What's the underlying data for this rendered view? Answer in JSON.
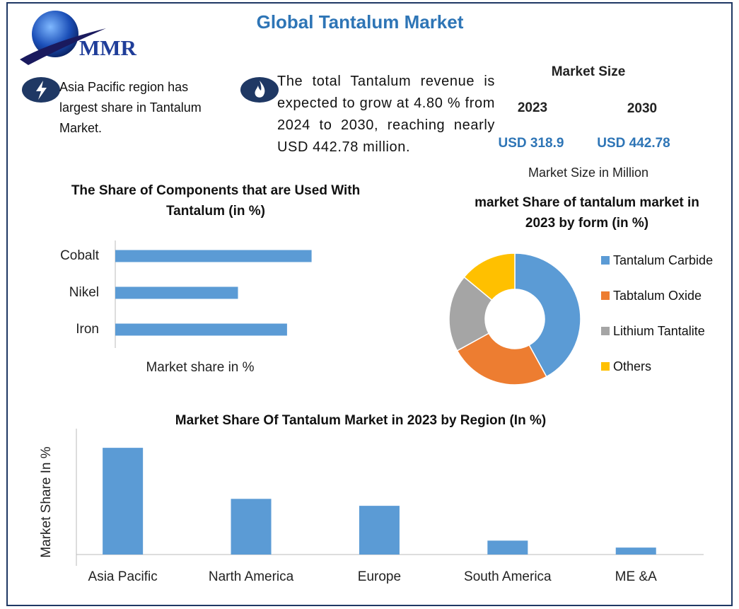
{
  "header": {
    "title": "Global Tantalum Market",
    "logo": "MMR"
  },
  "highlights": [
    "Asia Pacific region has largest share in Tantalum Market.",
    "The total Tantalum revenue is expected to grow at 4.80 % from 2024 to 2030, reaching nearly USD 442.78 million."
  ],
  "market_size": {
    "title": "Market Size",
    "years": [
      "2023",
      "2030"
    ],
    "amounts": [
      "USD 318.9",
      "USD 442.78"
    ],
    "note": "Market Size in Million"
  },
  "chart_data": [
    {
      "type": "hbar",
      "title": "The Share of Components that are Used With Tantalum (in %)",
      "x_label": "Market share in %",
      "categories": [
        "Cobalt",
        "Nikel",
        "Iron"
      ],
      "values": [
        40,
        25,
        35
      ],
      "color": "#5b9bd5",
      "xlim": [
        0,
        50
      ]
    },
    {
      "type": "donut",
      "title": "market Share of tantalum market in 2023 by form (in %)",
      "categories": [
        "Tantalum Carbide",
        "Tabtalum Oxide",
        "Lithium Tantalite",
        "Others"
      ],
      "values": [
        42,
        25,
        19,
        14
      ],
      "colors": [
        "#5b9bd5",
        "#ed7d31",
        "#a5a5a5",
        "#ffc000"
      ],
      "legend": "right"
    },
    {
      "type": "bar",
      "title": "Market Share Of Tantalum Market in 2023 by Region (In %)",
      "y_label": "Market Share In %",
      "categories": [
        "Asia Pacific",
        "Narth America",
        "Europe",
        "South America",
        "ME &A"
      ],
      "values": [
        46,
        24,
        21,
        6,
        3
      ],
      "color": "#5b9bd5",
      "ylim": [
        0,
        50
      ]
    }
  ]
}
